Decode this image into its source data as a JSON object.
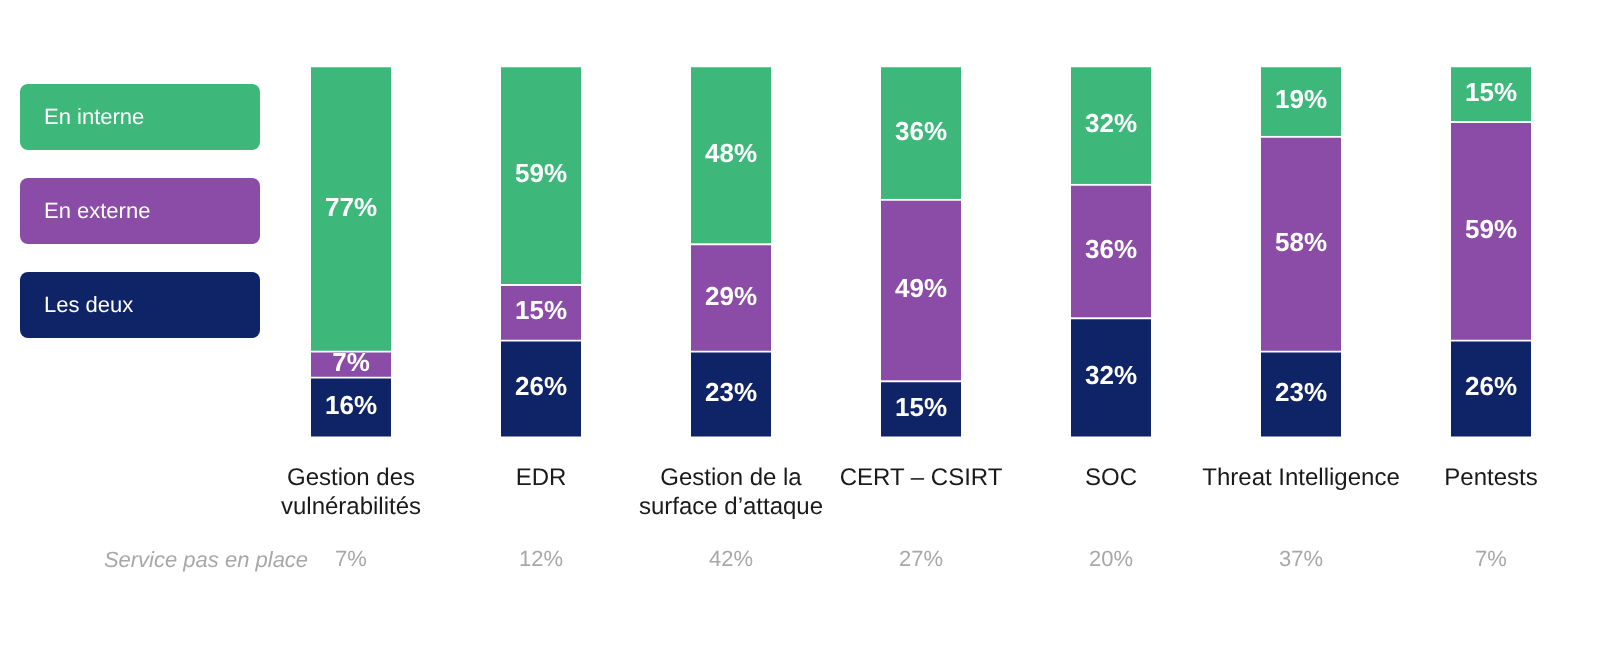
{
  "chart_data": {
    "type": "bar",
    "stacked": true,
    "legend": "left",
    "grid": false,
    "categories": [
      "Gestion des vulnérabilités",
      "EDR",
      "Gestion de la surface d’attaque",
      "CERT – CSIRT",
      "SOC",
      "Threat Intelligence",
      "Pentests"
    ],
    "series": [
      {
        "name": "Les deux",
        "color": "#0f2466",
        "values": [
          16,
          26,
          23,
          15,
          32,
          23,
          26
        ],
        "value_labels": [
          "16%",
          "26%",
          "23%",
          "15%",
          "32%",
          "23%",
          "26%"
        ]
      },
      {
        "name": "En externe",
        "color": "#8a4ca6",
        "values": [
          7,
          15,
          29,
          49,
          36,
          58,
          59
        ],
        "value_labels": [
          "7%",
          "15%",
          "29%",
          "49%",
          "36%",
          "58%",
          "59%"
        ]
      },
      {
        "name": "En interne",
        "color": "#3db87a",
        "values": [
          77,
          59,
          48,
          36,
          32,
          19,
          15
        ],
        "value_labels": [
          "77%",
          "59%",
          "48%",
          "36%",
          "32%",
          "19%",
          "15%"
        ]
      }
    ],
    "annotations": [
      "Service pas en place",
      "7%",
      "12%",
      "42%",
      "27%",
      "20%",
      "37%",
      "7%"
    ]
  }
}
